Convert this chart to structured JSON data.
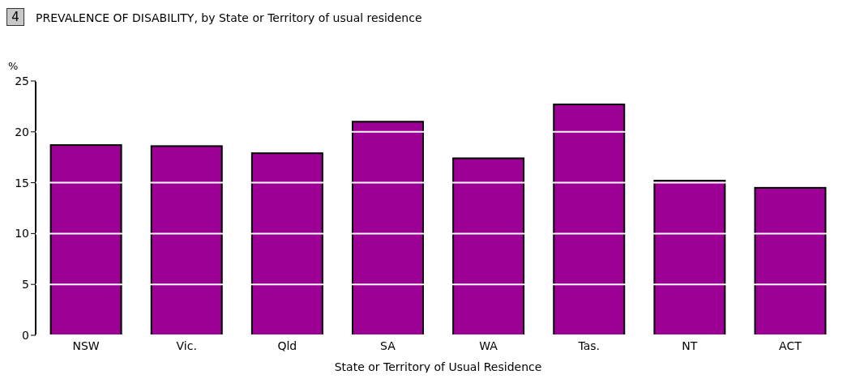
{
  "chart_data": {
    "type": "bar",
    "title": "PREVALENCE OF DISABILITY, by State or Territory of usual residence",
    "annotations": [
      "4"
    ],
    "xlabel": "State or Territory of Usual Residence",
    "ylabel": "%",
    "categories": [
      "NSW",
      "Vic.",
      "Qld",
      "SA",
      "WA",
      "Tas.",
      "NT",
      "ACT"
    ],
    "values": [
      18.7,
      18.6,
      17.9,
      21.0,
      17.4,
      22.7,
      15.2,
      14.5
    ],
    "color": "#9c0094",
    "ylim": [
      0,
      25
    ],
    "yticks": [
      0,
      5,
      10,
      15,
      20,
      25
    ],
    "grid": "y"
  }
}
